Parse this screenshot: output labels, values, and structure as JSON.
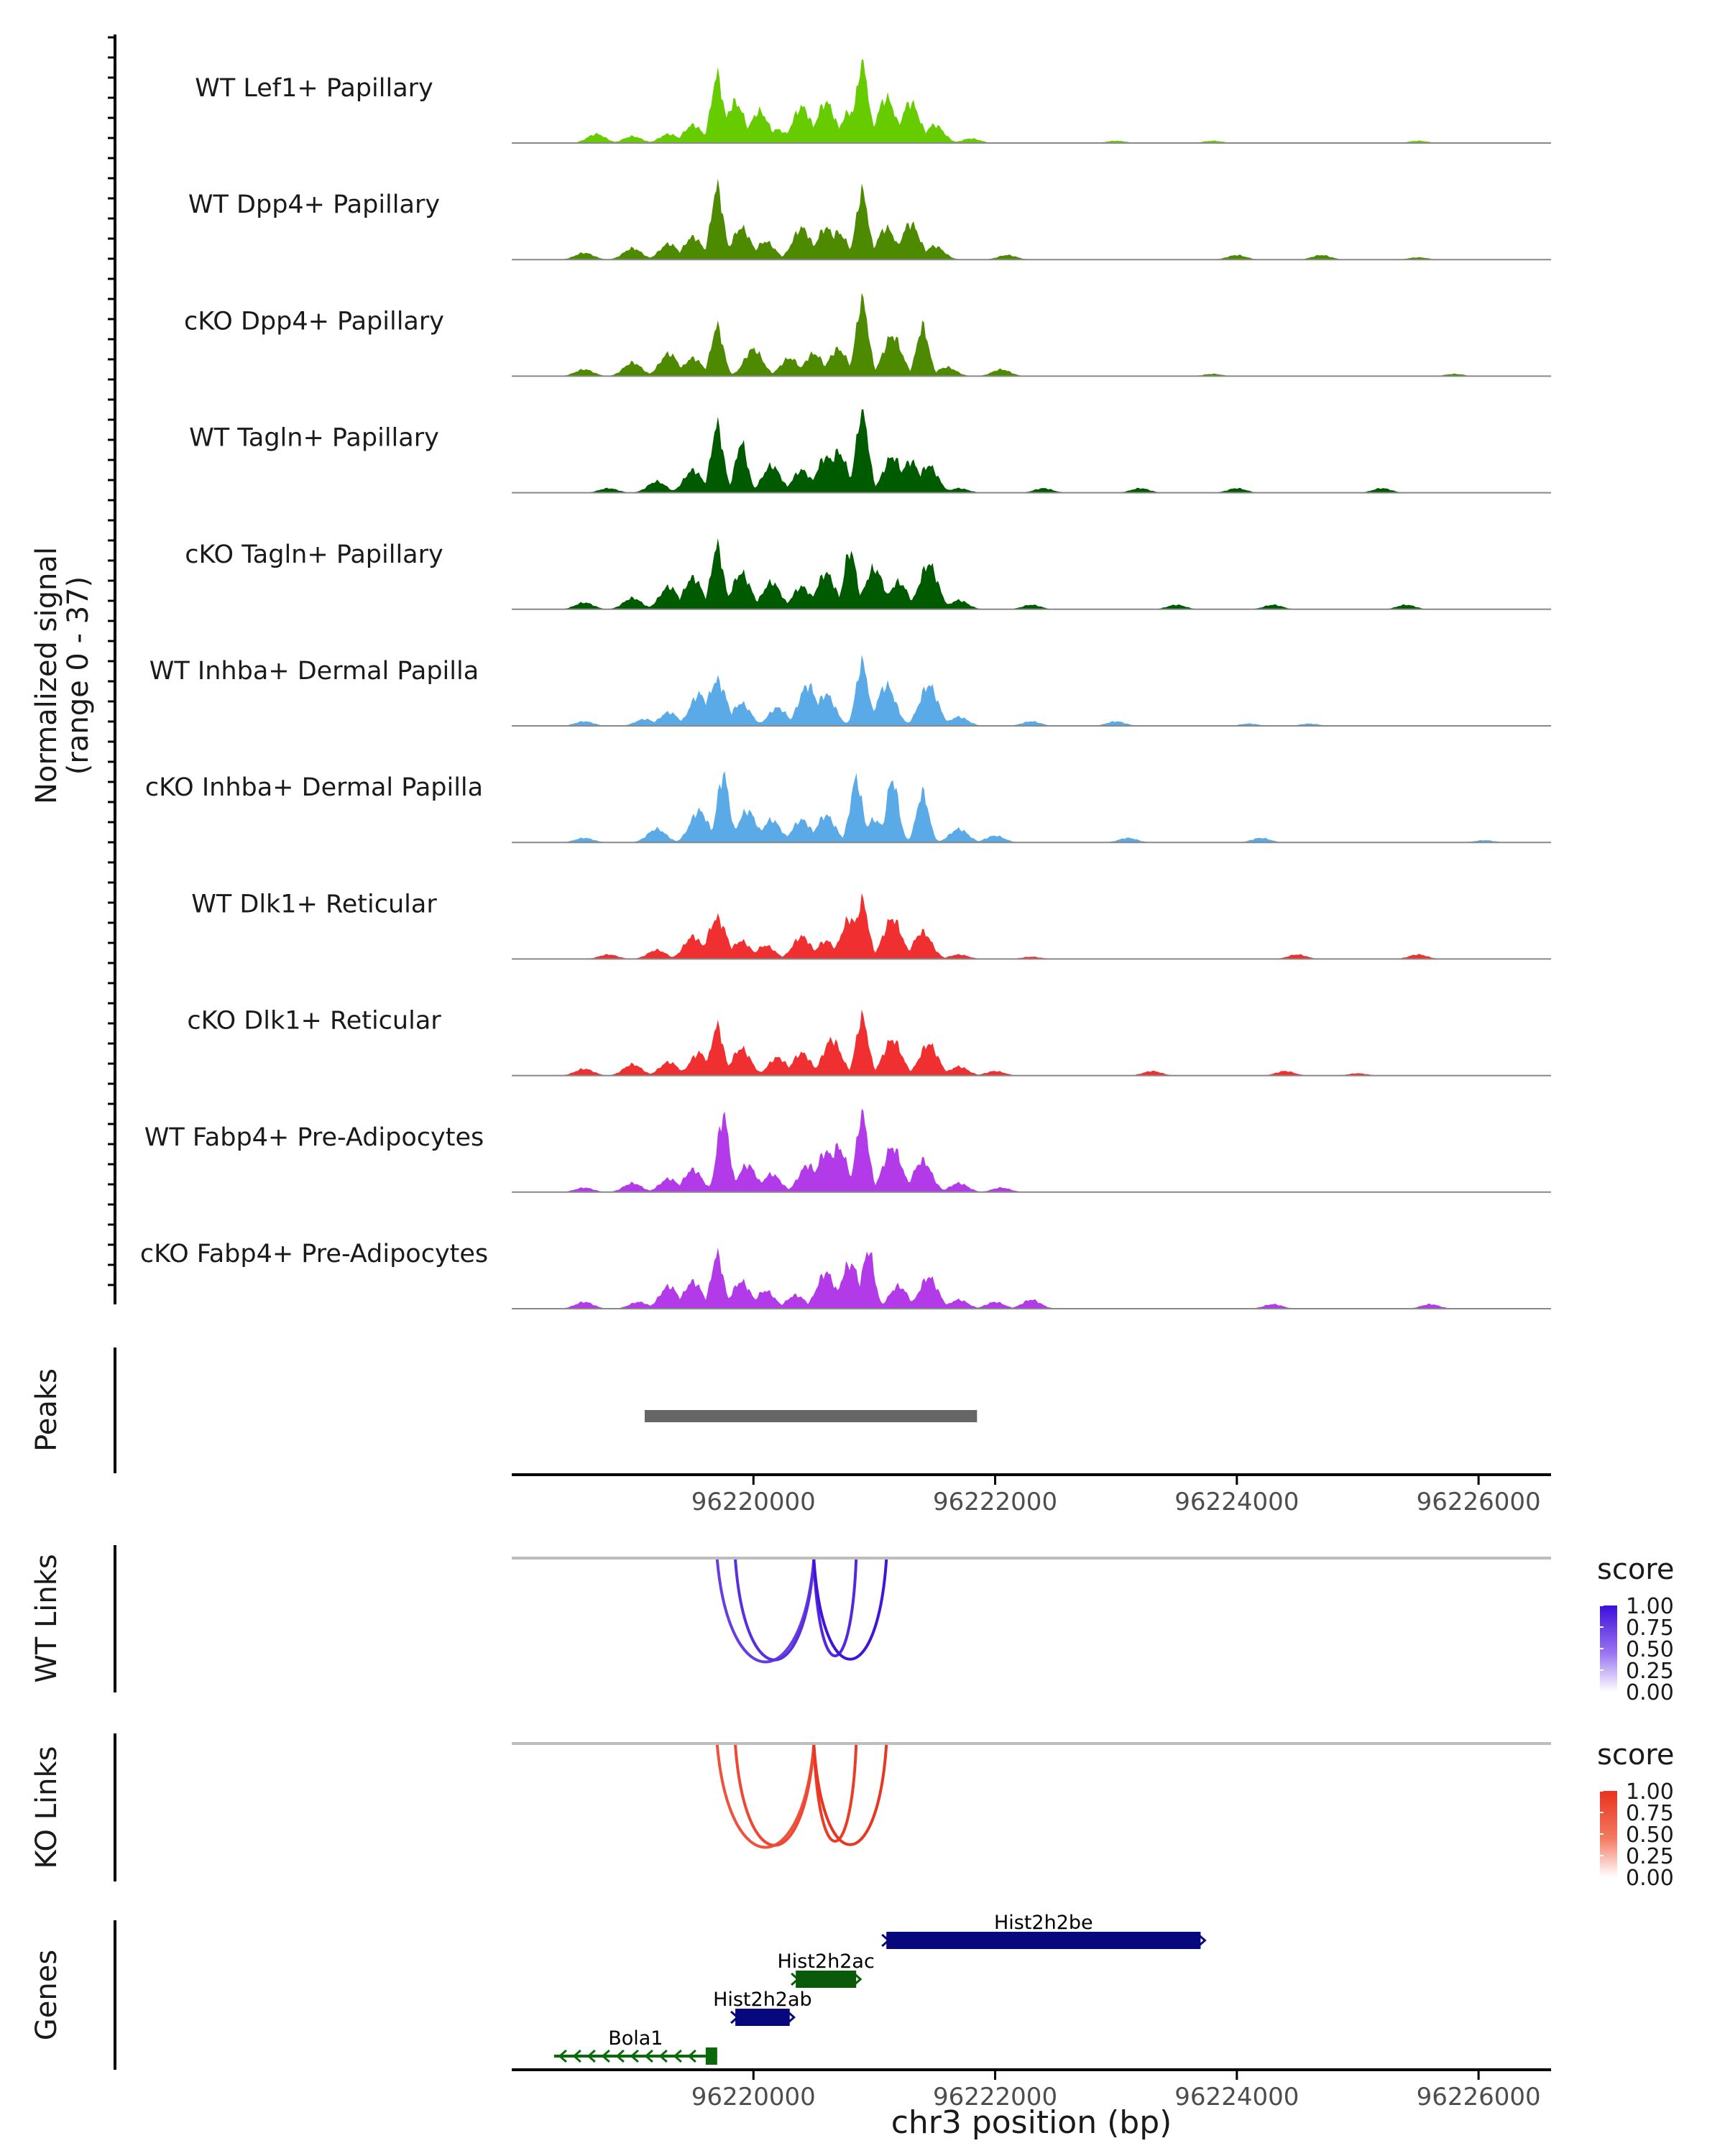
{
  "chart_data": {
    "type": "coverage-track",
    "region": {
      "chrom": "chr3",
      "start": 96218000,
      "end": 96226600
    },
    "x_ticks": [
      96220000,
      96222000,
      96224000,
      96226000
    ],
    "tick_labels": [
      "96220000",
      "96222000",
      "96224000",
      "96226000"
    ],
    "xlabel": "chr3 position (bp)",
    "coverage": {
      "ylabel_line1": "Normalized signal",
      "ylabel_line2": "(range 0 - 37)",
      "yrange": [
        0,
        37
      ],
      "tracks": [
        {
          "label": "WT Lef1+ Papillary",
          "color": "#66cc00",
          "peaks": [
            [
              96218700,
              4
            ],
            [
              96219000,
              3
            ],
            [
              96219300,
              4
            ],
            [
              96219500,
              8
            ],
            [
              96219700,
              30
            ],
            [
              96219850,
              18
            ],
            [
              96220050,
              14
            ],
            [
              96220200,
              6
            ],
            [
              96220400,
              16
            ],
            [
              96220600,
              18
            ],
            [
              96220800,
              14
            ],
            [
              96220900,
              36
            ],
            [
              96221100,
              20
            ],
            [
              96221300,
              18
            ],
            [
              96221500,
              8
            ],
            [
              96221800,
              2
            ],
            [
              96223000,
              1
            ],
            [
              96223800,
              1
            ],
            [
              96225500,
              1
            ]
          ]
        },
        {
          "label": "WT Dpp4+ Papillary",
          "color": "#4d8a00",
          "peaks": [
            [
              96218600,
              3
            ],
            [
              96219000,
              5
            ],
            [
              96219300,
              7
            ],
            [
              96219500,
              10
            ],
            [
              96219700,
              32
            ],
            [
              96219900,
              14
            ],
            [
              96220100,
              8
            ],
            [
              96220400,
              14
            ],
            [
              96220600,
              14
            ],
            [
              96220700,
              12
            ],
            [
              96220900,
              30
            ],
            [
              96221100,
              14
            ],
            [
              96221300,
              16
            ],
            [
              96221500,
              6
            ],
            [
              96222100,
              2
            ],
            [
              96224000,
              2
            ],
            [
              96224700,
              2
            ],
            [
              96225500,
              1
            ]
          ]
        },
        {
          "label": "cKO Dpp4+ Papillary",
          "color": "#4d8a00",
          "peaks": [
            [
              96218600,
              3
            ],
            [
              96219000,
              6
            ],
            [
              96219300,
              10
            ],
            [
              96219500,
              8
            ],
            [
              96219700,
              22
            ],
            [
              96220000,
              12
            ],
            [
              96220300,
              8
            ],
            [
              96220500,
              10
            ],
            [
              96220700,
              12
            ],
            [
              96220900,
              34
            ],
            [
              96221150,
              18
            ],
            [
              96221400,
              22
            ],
            [
              96221600,
              4
            ],
            [
              96222050,
              3
            ],
            [
              96223800,
              1
            ],
            [
              96225800,
              1
            ]
          ]
        },
        {
          "label": "WT Tagln+ Papillary",
          "color": "#005a00",
          "peaks": [
            [
              96218800,
              2
            ],
            [
              96219200,
              5
            ],
            [
              96219500,
              10
            ],
            [
              96219700,
              30
            ],
            [
              96219900,
              22
            ],
            [
              96220150,
              12
            ],
            [
              96220400,
              10
            ],
            [
              96220600,
              16
            ],
            [
              96220700,
              18
            ],
            [
              96220900,
              37
            ],
            [
              96221150,
              16
            ],
            [
              96221300,
              14
            ],
            [
              96221450,
              12
            ],
            [
              96221700,
              2
            ],
            [
              96222400,
              2
            ],
            [
              96223200,
              2
            ],
            [
              96224000,
              2
            ],
            [
              96225200,
              2
            ]
          ]
        },
        {
          "label": "cKO Tagln+ Papillary",
          "color": "#005a00",
          "peaks": [
            [
              96218600,
              3
            ],
            [
              96219000,
              5
            ],
            [
              96219300,
              10
            ],
            [
              96219500,
              14
            ],
            [
              96219700,
              28
            ],
            [
              96219900,
              16
            ],
            [
              96220150,
              12
            ],
            [
              96220400,
              10
            ],
            [
              96220600,
              16
            ],
            [
              96220800,
              26
            ],
            [
              96221000,
              18
            ],
            [
              96221200,
              12
            ],
            [
              96221450,
              20
            ],
            [
              96221700,
              4
            ],
            [
              96222300,
              2
            ],
            [
              96223500,
              2
            ],
            [
              96224300,
              2
            ],
            [
              96225400,
              2
            ]
          ]
        },
        {
          "label": "WT Inhba+ Dermal Papilla",
          "color": "#5aaae8",
          "peaks": [
            [
              96218600,
              2
            ],
            [
              96219100,
              3
            ],
            [
              96219300,
              6
            ],
            [
              96219550,
              14
            ],
            [
              96219700,
              20
            ],
            [
              96219900,
              10
            ],
            [
              96220200,
              8
            ],
            [
              96220450,
              18
            ],
            [
              96220600,
              14
            ],
            [
              96220900,
              28
            ],
            [
              96221100,
              18
            ],
            [
              96221450,
              18
            ],
            [
              96221700,
              4
            ],
            [
              96222300,
              2
            ],
            [
              96223000,
              2
            ],
            [
              96224100,
              1
            ],
            [
              96224600,
              1
            ]
          ]
        },
        {
          "label": "cKO Inhba+ Dermal Papilla",
          "color": "#5aaae8",
          "peaks": [
            [
              96218600,
              2
            ],
            [
              96219200,
              6
            ],
            [
              96219550,
              14
            ],
            [
              96219750,
              30
            ],
            [
              96219950,
              14
            ],
            [
              96220150,
              10
            ],
            [
              96220400,
              10
            ],
            [
              96220600,
              12
            ],
            [
              96220850,
              28
            ],
            [
              96221000,
              10
            ],
            [
              96221150,
              28
            ],
            [
              96221400,
              22
            ],
            [
              96221700,
              6
            ],
            [
              96222000,
              3
            ],
            [
              96223100,
              2
            ],
            [
              96224200,
              2
            ],
            [
              96226050,
              1
            ]
          ]
        },
        {
          "label": "WT Dlk1+ Reticular",
          "color": "#f03030",
          "peaks": [
            [
              96218800,
              2
            ],
            [
              96219200,
              4
            ],
            [
              96219500,
              10
            ],
            [
              96219700,
              18
            ],
            [
              96219900,
              8
            ],
            [
              96220100,
              6
            ],
            [
              96220400,
              10
            ],
            [
              96220600,
              8
            ],
            [
              96220800,
              18
            ],
            [
              96220900,
              26
            ],
            [
              96221150,
              18
            ],
            [
              96221400,
              12
            ],
            [
              96221700,
              2
            ],
            [
              96222300,
              1
            ],
            [
              96224500,
              2
            ],
            [
              96225500,
              2
            ]
          ]
        },
        {
          "label": "cKO Dlk1+ Reticular",
          "color": "#f03030",
          "peaks": [
            [
              96218600,
              3
            ],
            [
              96219000,
              5
            ],
            [
              96219300,
              6
            ],
            [
              96219550,
              10
            ],
            [
              96219700,
              22
            ],
            [
              96219900,
              12
            ],
            [
              96220200,
              8
            ],
            [
              96220400,
              10
            ],
            [
              96220650,
              16
            ],
            [
              96220900,
              26
            ],
            [
              96221150,
              16
            ],
            [
              96221450,
              14
            ],
            [
              96221700,
              4
            ],
            [
              96222000,
              2
            ],
            [
              96223300,
              2
            ],
            [
              96224400,
              2
            ],
            [
              96225000,
              1
            ]
          ]
        },
        {
          "label": "WT Fabp4+ Pre-Adipocytes",
          "color": "#b23ae8",
          "peaks": [
            [
              96218600,
              2
            ],
            [
              96219000,
              4
            ],
            [
              96219300,
              6
            ],
            [
              96219500,
              10
            ],
            [
              96219750,
              34
            ],
            [
              96219950,
              12
            ],
            [
              96220150,
              8
            ],
            [
              96220450,
              12
            ],
            [
              96220600,
              18
            ],
            [
              96220700,
              20
            ],
            [
              96220900,
              35
            ],
            [
              96221150,
              20
            ],
            [
              96221400,
              14
            ],
            [
              96221700,
              4
            ],
            [
              96222050,
              2
            ]
          ]
        },
        {
          "label": "cKO Fabp4+ Pre-Adipocytes",
          "color": "#b23ae8",
          "peaks": [
            [
              96218600,
              3
            ],
            [
              96219050,
              3
            ],
            [
              96219300,
              10
            ],
            [
              96219500,
              12
            ],
            [
              96219700,
              24
            ],
            [
              96219900,
              12
            ],
            [
              96220100,
              8
            ],
            [
              96220350,
              6
            ],
            [
              96220600,
              16
            ],
            [
              96220800,
              20
            ],
            [
              96220950,
              26
            ],
            [
              96221200,
              10
            ],
            [
              96221450,
              14
            ],
            [
              96221700,
              4
            ],
            [
              96222000,
              3
            ],
            [
              96222300,
              4
            ],
            [
              96224300,
              2
            ],
            [
              96225600,
              2
            ]
          ]
        }
      ]
    },
    "peaks_track": {
      "label": "Peaks",
      "color": "#666666",
      "ranges": [
        [
          96219100,
          96221850
        ]
      ]
    },
    "link_tracks": [
      {
        "label": "WT Links",
        "legend_title": "score",
        "legend_ticks": [
          "1.00",
          "0.75",
          "0.50",
          "0.25",
          "0.00"
        ],
        "color_high": "#3b10d8",
        "color_mid": "#9a74f0",
        "links": [
          [
            96219700,
            96220500,
            0.55
          ],
          [
            96219850,
            96220500,
            0.7
          ],
          [
            96220500,
            96220850,
            0.75
          ],
          [
            96220500,
            96221100,
            0.95
          ]
        ]
      },
      {
        "label": "KO Links",
        "legend_title": "score",
        "legend_ticks": [
          "1.00",
          "0.75",
          "0.50",
          "0.25",
          "0.00"
        ],
        "color_high": "#e8321e",
        "color_mid": "#f47a62",
        "links": [
          [
            96219700,
            96220500,
            0.55
          ],
          [
            96219850,
            96220500,
            0.7
          ],
          [
            96220500,
            96220850,
            0.85
          ],
          [
            96220500,
            96221100,
            0.95
          ]
        ]
      }
    ],
    "genes_track": {
      "label": "Genes",
      "genes": [
        {
          "name": "Hist2h2be",
          "start": 96221100,
          "end": 96223700,
          "color": "#08087e",
          "row": 0,
          "strand": "+"
        },
        {
          "name": "Hist2h2ac",
          "start": 96220350,
          "end": 96220850,
          "color": "#0a5a0a",
          "row": 1,
          "strand": "+"
        },
        {
          "name": "Hist2h2ab",
          "start": 96219850,
          "end": 96220300,
          "color": "#08087e",
          "row": 2,
          "strand": "+"
        },
        {
          "name": "Bola1",
          "start": 96218350,
          "end": 96219700,
          "color": "#0a6a0a",
          "row": 3,
          "strand": "-"
        }
      ]
    }
  }
}
